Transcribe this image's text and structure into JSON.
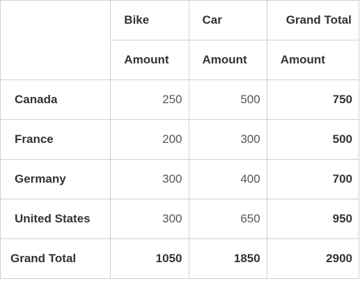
{
  "columns": {
    "headers": [
      "Bike",
      "Car",
      "Grand Total"
    ],
    "measure_label": "Amount"
  },
  "rows": [
    {
      "label": "Canada",
      "values": [
        "250",
        "500",
        "750"
      ]
    },
    {
      "label": "France",
      "values": [
        "200",
        "300",
        "500"
      ]
    },
    {
      "label": "Germany",
      "values": [
        "300",
        "400",
        "700"
      ]
    },
    {
      "label": "United States",
      "values": [
        "300",
        "650",
        "950"
      ]
    }
  ],
  "grand_total": {
    "label": "Grand Total",
    "values": [
      "1050",
      "1850",
      "2900"
    ]
  }
}
